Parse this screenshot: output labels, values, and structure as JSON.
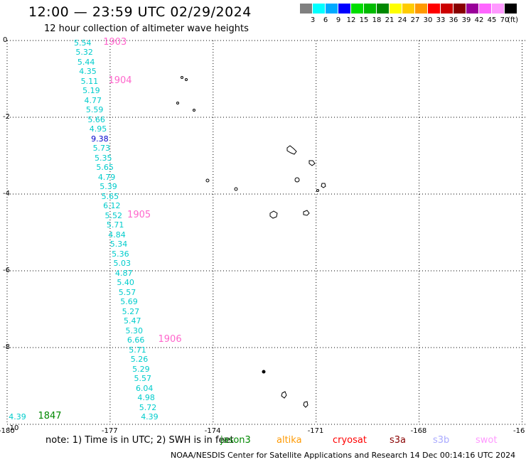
{
  "header": {
    "title": "12:00 — 23:59 UTC 02/29/2024",
    "subtitle": "12 hour collection of altimeter wave heights"
  },
  "legend": {
    "colors": [
      "#808080",
      "#00ffff",
      "#00aaff",
      "#0000ff",
      "#00dd00",
      "#00bb00",
      "#008800",
      "#ffff00",
      "#ffcc00",
      "#ff9900",
      "#ff0000",
      "#cc0000",
      "#880000",
      "#990099",
      "#ff66ff",
      "#ff99ff",
      "#000000"
    ],
    "labels": [
      "3",
      "6",
      "9",
      "12",
      "15",
      "18",
      "21",
      "24",
      "27",
      "30",
      "33",
      "36",
      "39",
      "42",
      "45",
      "70"
    ],
    "unit": "(ft)"
  },
  "axes": {
    "lon_labels": [
      "-180",
      "-177",
      "-174",
      "-171",
      "-168",
      "-16"
    ],
    "lat_labels": [
      "0",
      "-2",
      "-4",
      "-6",
      "-8",
      "-10"
    ]
  },
  "track": [
    {
      "v": "5.54",
      "lat": -0.05,
      "lon": -177.8
    },
    {
      "v": "5.32",
      "lat": -0.3,
      "lon": -177.75
    },
    {
      "v": "5.44",
      "lat": -0.55,
      "lon": -177.7
    },
    {
      "v": "4.35",
      "lat": -0.8,
      "lon": -177.65
    },
    {
      "v": "5.11",
      "lat": -1.05,
      "lon": -177.6
    },
    {
      "v": "5.19",
      "lat": -1.3,
      "lon": -177.55
    },
    {
      "v": "4.77",
      "lat": -1.55,
      "lon": -177.5
    },
    {
      "v": "5.59",
      "lat": -1.8,
      "lon": -177.45
    },
    {
      "v": "5.66",
      "lat": -2.05,
      "lon": -177.4
    },
    {
      "v": "4.95",
      "lat": -2.3,
      "lon": -177.35
    },
    {
      "v": "9.38",
      "lat": -2.55,
      "lon": -177.3,
      "high": true
    },
    {
      "v": "5.73",
      "lat": -2.8,
      "lon": -177.25
    },
    {
      "v": "5.35",
      "lat": -3.05,
      "lon": -177.2
    },
    {
      "v": "5.65",
      "lat": -3.3,
      "lon": -177.15
    },
    {
      "v": "4.79",
      "lat": -3.55,
      "lon": -177.1
    },
    {
      "v": "5.39",
      "lat": -3.8,
      "lon": -177.05
    },
    {
      "v": "5.65",
      "lat": -4.05,
      "lon": -177.0
    },
    {
      "v": "6.12",
      "lat": -4.3,
      "lon": -176.95
    },
    {
      "v": "5.52",
      "lat": -4.55,
      "lon": -176.9
    },
    {
      "v": "5.71",
      "lat": -4.8,
      "lon": -176.85
    },
    {
      "v": "4.84",
      "lat": -5.05,
      "lon": -176.8
    },
    {
      "v": "5.34",
      "lat": -5.3,
      "lon": -176.75
    },
    {
      "v": "5.36",
      "lat": -5.55,
      "lon": -176.7
    },
    {
      "v": "5.03",
      "lat": -5.8,
      "lon": -176.65
    },
    {
      "v": "4.87",
      "lat": -6.05,
      "lon": -176.6
    },
    {
      "v": "5.40",
      "lat": -6.3,
      "lon": -176.55
    },
    {
      "v": "5.57",
      "lat": -6.55,
      "lon": -176.5
    },
    {
      "v": "5.69",
      "lat": -6.8,
      "lon": -176.45
    },
    {
      "v": "5.27",
      "lat": -7.05,
      "lon": -176.4
    },
    {
      "v": "5.47",
      "lat": -7.3,
      "lon": -176.35
    },
    {
      "v": "5.30",
      "lat": -7.55,
      "lon": -176.3
    },
    {
      "v": "6.66",
      "lat": -7.8,
      "lon": -176.25
    },
    {
      "v": "5.71",
      "lat": -8.05,
      "lon": -176.2
    },
    {
      "v": "5.26",
      "lat": -8.3,
      "lon": -176.15
    },
    {
      "v": "5.29",
      "lat": -8.55,
      "lon": -176.1
    },
    {
      "v": "5.57",
      "lat": -8.8,
      "lon": -176.05
    },
    {
      "v": "6.04",
      "lat": -9.05,
      "lon": -176.0
    },
    {
      "v": "4.98",
      "lat": -9.3,
      "lon": -175.95
    },
    {
      "v": "5.72",
      "lat": -9.55,
      "lon": -175.9
    },
    {
      "v": "4.39",
      "lat": -9.8,
      "lon": -175.85
    }
  ],
  "extra_point": {
    "v": "4.39",
    "lat": -9.8,
    "lon": -179.7
  },
  "cycle_marks": [
    {
      "t": "1903",
      "lat": -0.05,
      "lon": -177.2
    },
    {
      "t": "1904",
      "lat": -1.05,
      "lon": -177.05
    },
    {
      "t": "1905",
      "lat": -4.55,
      "lon": -176.5
    },
    {
      "t": "1906",
      "lat": -7.8,
      "lon": -175.6
    },
    {
      "t": "1847",
      "lat": -9.8,
      "lon": -179.1,
      "green": true
    }
  ],
  "footer": {
    "note": "note:  1) Time is in UTC; 2) SWH is in feet",
    "sats": [
      {
        "name": "jason3",
        "color": "#008800"
      },
      {
        "name": "altika",
        "color": "#ff9900"
      },
      {
        "name": "cryosat",
        "color": "#ff0000"
      },
      {
        "name": "s3a",
        "color": "#880000"
      },
      {
        "name": "s3b",
        "color": "#aaaaff"
      },
      {
        "name": "swot",
        "color": "#ff99ff"
      }
    ],
    "credit": "NOAA/NESDIS Center for Satellite Applications and Research    14 Dec 00:14:16 UTC 2024"
  }
}
